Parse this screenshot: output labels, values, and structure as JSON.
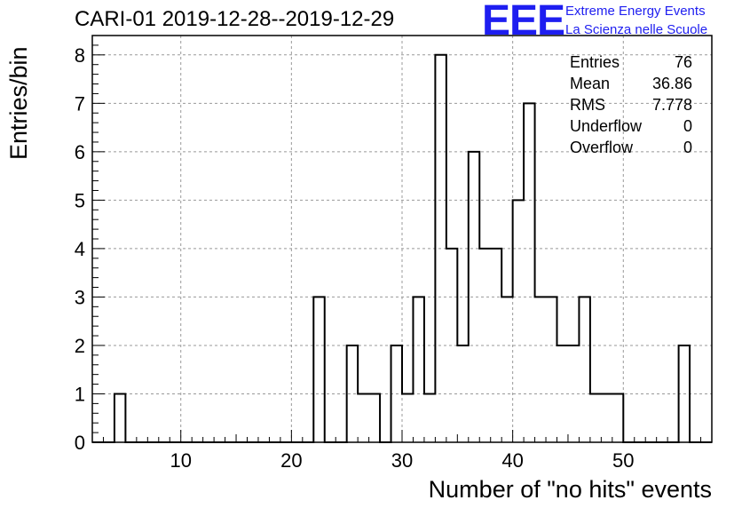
{
  "title": "CARI-01 2019-12-28--2019-12-29",
  "logo": {
    "letters": "EEE",
    "line1": "Extreme Energy Events",
    "line2": "La Scienza nelle Scuole",
    "color": "#1e1ef0"
  },
  "stats": [
    {
      "label": "Entries",
      "value": "76"
    },
    {
      "label": "Mean",
      "value": "36.86"
    },
    {
      "label": "RMS",
      "value": "7.778"
    },
    {
      "label": "Underflow",
      "value": "0"
    },
    {
      "label": "Overflow",
      "value": "0"
    }
  ],
  "chart_data": {
    "type": "bar",
    "style": "step-histogram",
    "title": "CARI-01 2019-12-28--2019-12-29",
    "xlabel": "Number of \"no hits\" events",
    "ylabel": "Entries/bin",
    "xlim": [
      2,
      58
    ],
    "ylim": [
      0,
      8.4
    ],
    "bin_width": 1,
    "x_ticks": [
      "10",
      "20",
      "30",
      "40",
      "50"
    ],
    "y_ticks": [
      "0",
      "1",
      "2",
      "3",
      "4",
      "5",
      "6",
      "7",
      "8"
    ],
    "grid": true,
    "bins": [
      {
        "x": 4,
        "count": 1
      },
      {
        "x": 22,
        "count": 3
      },
      {
        "x": 25,
        "count": 2
      },
      {
        "x": 26,
        "count": 1
      },
      {
        "x": 27,
        "count": 1
      },
      {
        "x": 29,
        "count": 2
      },
      {
        "x": 30,
        "count": 1
      },
      {
        "x": 31,
        "count": 3
      },
      {
        "x": 32,
        "count": 1
      },
      {
        "x": 33,
        "count": 8
      },
      {
        "x": 34,
        "count": 4
      },
      {
        "x": 35,
        "count": 2
      },
      {
        "x": 36,
        "count": 6
      },
      {
        "x": 37,
        "count": 4
      },
      {
        "x": 38,
        "count": 4
      },
      {
        "x": 39,
        "count": 3
      },
      {
        "x": 40,
        "count": 5
      },
      {
        "x": 41,
        "count": 7
      },
      {
        "x": 42,
        "count": 3
      },
      {
        "x": 43,
        "count": 3
      },
      {
        "x": 44,
        "count": 2
      },
      {
        "x": 45,
        "count": 2
      },
      {
        "x": 46,
        "count": 3
      },
      {
        "x": 47,
        "count": 1
      },
      {
        "x": 48,
        "count": 1
      },
      {
        "x": 49,
        "count": 1
      },
      {
        "x": 55,
        "count": 2
      }
    ]
  }
}
